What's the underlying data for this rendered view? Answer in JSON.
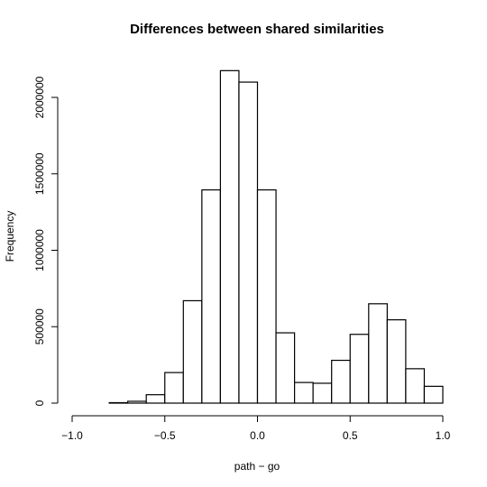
{
  "chart_data": {
    "type": "bar",
    "title": "Differences between shared similarities",
    "xlabel": "path − go",
    "ylabel": "Frequency",
    "xlim": [
      -1.0,
      1.0
    ],
    "ylim": [
      0,
      2180000
    ],
    "bin_width": 0.1,
    "bins": [
      {
        "x0": -1.0,
        "x1": -0.9,
        "value": 0
      },
      {
        "x0": -0.9,
        "x1": -0.8,
        "value": 0
      },
      {
        "x0": -0.8,
        "x1": -0.7,
        "value": 3000
      },
      {
        "x0": -0.7,
        "x1": -0.6,
        "value": 12000
      },
      {
        "x0": -0.6,
        "x1": -0.5,
        "value": 55000
      },
      {
        "x0": -0.5,
        "x1": -0.4,
        "value": 200000
      },
      {
        "x0": -0.4,
        "x1": -0.3,
        "value": 670000
      },
      {
        "x0": -0.3,
        "x1": -0.2,
        "value": 1395000
      },
      {
        "x0": -0.2,
        "x1": -0.1,
        "value": 2175000
      },
      {
        "x0": -0.1,
        "x1": 0.0,
        "value": 2100000
      },
      {
        "x0": 0.0,
        "x1": 0.1,
        "value": 1395000
      },
      {
        "x0": 0.1,
        "x1": 0.2,
        "value": 460000
      },
      {
        "x0": 0.2,
        "x1": 0.3,
        "value": 135000
      },
      {
        "x0": 0.3,
        "x1": 0.4,
        "value": 130000
      },
      {
        "x0": 0.4,
        "x1": 0.5,
        "value": 280000
      },
      {
        "x0": 0.5,
        "x1": 0.6,
        "value": 450000
      },
      {
        "x0": 0.6,
        "x1": 0.7,
        "value": 650000
      },
      {
        "x0": 0.7,
        "x1": 0.8,
        "value": 545000
      },
      {
        "x0": 0.8,
        "x1": 0.9,
        "value": 225000
      },
      {
        "x0": 0.9,
        "x1": 1.0,
        "value": 110000
      }
    ],
    "x_ticks": [
      -1.0,
      -0.5,
      0.0,
      0.5,
      1.0
    ],
    "x_tick_labels": [
      "−1.0",
      "−0.5",
      "0.0",
      "0.5",
      "1.0"
    ],
    "y_ticks": [
      0,
      500000,
      1000000,
      1500000,
      2000000
    ],
    "y_tick_labels": [
      "0",
      "500000",
      "1000000",
      "1500000",
      "2000000"
    ],
    "grid": false,
    "legend": "none"
  }
}
